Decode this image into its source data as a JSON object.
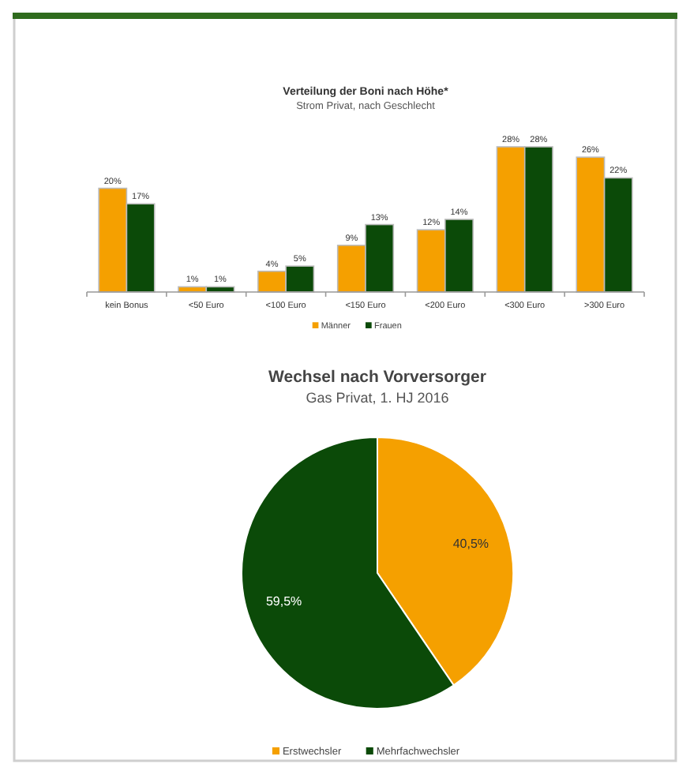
{
  "chart_data": [
    {
      "type": "bar",
      "title": "Verteilung der Boni nach Höhe*",
      "subtitle": "Strom Privat, nach Geschlecht",
      "categories": [
        "kein Bonus",
        "<50 Euro",
        "<100 Euro",
        "<150 Euro",
        "<200 Euro",
        "<300 Euro",
        ">300 Euro"
      ],
      "series": [
        {
          "name": "Männer",
          "color": "#f5a000",
          "values": [
            20,
            1,
            4,
            9,
            12,
            28,
            26
          ],
          "value_labels": [
            "20%",
            "1%",
            "4%",
            "9%",
            "12%",
            "28%",
            "26%"
          ]
        },
        {
          "name": "Frauen",
          "color": "#0b4a08",
          "values": [
            17,
            1,
            5,
            13,
            14,
            28,
            22
          ],
          "value_labels": [
            "17%",
            "1%",
            "5%",
            "13%",
            "14%",
            "28%",
            "22%"
          ]
        }
      ],
      "legend": "bottom",
      "grid": false
    },
    {
      "type": "pie",
      "title": "Wechsel nach Vorversorger",
      "subtitle": "Gas Privat, 1. HJ 2016",
      "categories": [
        "Erstwechsler",
        "Mehrfachwechsler"
      ],
      "values": [
        40.5,
        59.5
      ],
      "colors": [
        "#f5a000",
        "#0b4a08"
      ],
      "value_labels": [
        "40,5%",
        "59,5%"
      ],
      "legend": "bottom"
    }
  ]
}
